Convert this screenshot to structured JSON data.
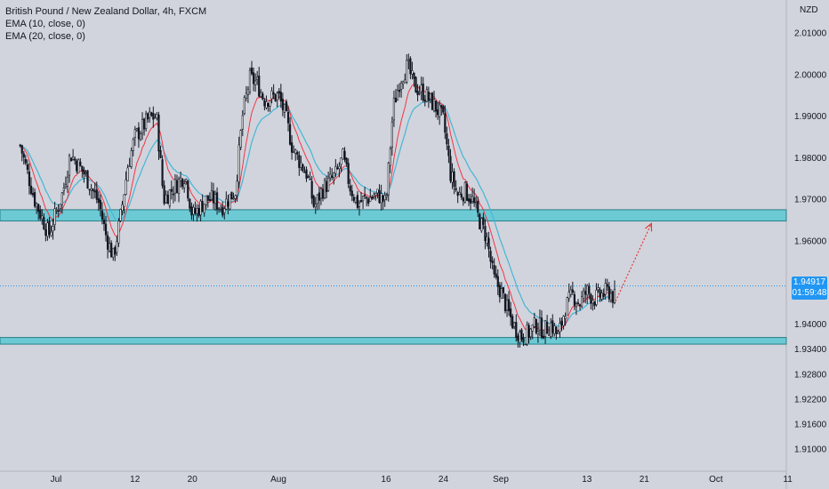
{
  "legend": {
    "symbol": "British Pound / New Zealand Dollar, 4h, FXCM",
    "ema10": "EMA (10, close, 0)",
    "ema20": "EMA (20, close, 0)"
  },
  "currency": "NZD",
  "price_tag": {
    "price": "1.94917",
    "countdown": "01:59:48"
  },
  "colors": {
    "background": "#d1d4dc",
    "zone_fill": "#5bc8d3",
    "zone_border": "#2a7f89",
    "candle": "#131722",
    "ema10": "#f23645",
    "ema20": "#45b6d6",
    "projection": "#e53935",
    "price_line": "#2196f3"
  },
  "chart_data": {
    "type": "candlestick",
    "title": "British Pound / New Zealand Dollar, 4h, FXCM",
    "ylabel": "NZD",
    "ylim": [
      1.905,
      2.013
    ],
    "y_ticks": [
      "2.01000",
      "2.00000",
      "1.99000",
      "1.98000",
      "1.97000",
      "1.96000",
      "1.94000",
      "1.93400",
      "1.92800",
      "1.92200",
      "1.91600",
      "1.91000"
    ],
    "x_ticks": [
      "Jul",
      "12",
      "20",
      "Aug",
      "16",
      "24",
      "Sep",
      "13",
      "21",
      "Oct",
      "11"
    ],
    "support_resistance_zones": [
      {
        "name": "resistance zone",
        "low": 1.9648,
        "high": 1.9675
      },
      {
        "name": "support zone",
        "low": 1.9352,
        "high": 1.9368
      }
    ],
    "last_price": 1.94917,
    "projection": {
      "from": {
        "x": "Sep 17",
        "y": 1.9455
      },
      "to": {
        "x": "Sep 22",
        "y": 1.9642
      }
    },
    "close_path": [
      {
        "x": "Jun 26",
        "y": 1.983
      },
      {
        "x": "Jun 28",
        "y": 1.97
      },
      {
        "x": "Jun 30",
        "y": 1.9615
      },
      {
        "x": "Jul 2",
        "y": 1.972
      },
      {
        "x": "Jul 3",
        "y": 1.981
      },
      {
        "x": "Jul 5",
        "y": 1.976
      },
      {
        "x": "Jul 7",
        "y": 1.969
      },
      {
        "x": "Jul 8",
        "y": 1.961
      },
      {
        "x": "Jul 9",
        "y": 1.956
      },
      {
        "x": "Jul 10",
        "y": 1.966
      },
      {
        "x": "Jul 11",
        "y": 1.978
      },
      {
        "x": "Jul 12",
        "y": 1.985
      },
      {
        "x": "Jul 14",
        "y": 1.9895
      },
      {
        "x": "Jul 15",
        "y": 1.99
      },
      {
        "x": "Jul 16",
        "y": 1.97
      },
      {
        "x": "Jul 17",
        "y": 1.972
      },
      {
        "x": "Jul 19",
        "y": 1.976
      },
      {
        "x": "Jul 20",
        "y": 1.966
      },
      {
        "x": "Jul 22",
        "y": 1.97
      },
      {
        "x": "Jul 23",
        "y": 1.97
      },
      {
        "x": "Jul 24",
        "y": 1.968
      },
      {
        "x": "Jul 26",
        "y": 1.972
      },
      {
        "x": "Jul 27",
        "y": 1.99
      },
      {
        "x": "Jul 28",
        "y": 1.999
      },
      {
        "x": "Jul 29",
        "y": 1.998
      },
      {
        "x": "Jul 30",
        "y": 1.994
      },
      {
        "x": "Aug 1",
        "y": 1.995
      },
      {
        "x": "Aug 2",
        "y": 1.99
      },
      {
        "x": "Aug 3",
        "y": 1.982
      },
      {
        "x": "Aug 5",
        "y": 1.976
      },
      {
        "x": "Aug 6",
        "y": 1.968
      },
      {
        "x": "Aug 7",
        "y": 1.972
      },
      {
        "x": "Aug 9",
        "y": 1.976
      },
      {
        "x": "Aug 10",
        "y": 1.98
      },
      {
        "x": "Aug 11",
        "y": 1.973
      },
      {
        "x": "Aug 12",
        "y": 1.969
      },
      {
        "x": "Aug 13",
        "y": 1.97
      },
      {
        "x": "Aug 15",
        "y": 1.971
      },
      {
        "x": "Aug 16",
        "y": 1.969
      },
      {
        "x": "Aug 17",
        "y": 1.992
      },
      {
        "x": "Aug 18",
        "y": 1.999
      },
      {
        "x": "Aug 19",
        "y": 2.002
      },
      {
        "x": "Aug 20",
        "y": 1.997
      },
      {
        "x": "Aug 21",
        "y": 1.996
      },
      {
        "x": "Aug 22",
        "y": 1.994
      },
      {
        "x": "Aug 23",
        "y": 1.992
      },
      {
        "x": "Aug 24",
        "y": 1.989
      },
      {
        "x": "Aug 25",
        "y": 1.976
      },
      {
        "x": "Aug 26",
        "y": 1.971
      },
      {
        "x": "Aug 27",
        "y": 1.972
      },
      {
        "x": "Aug 28",
        "y": 1.97
      },
      {
        "x": "Aug 29",
        "y": 1.965
      },
      {
        "x": "Aug 30",
        "y": 1.961
      },
      {
        "x": "Aug 31",
        "y": 1.951
      },
      {
        "x": "Sep 1",
        "y": 1.948
      },
      {
        "x": "Sep 2",
        "y": 1.943
      },
      {
        "x": "Sep 3",
        "y": 1.939
      },
      {
        "x": "Sep 4",
        "y": 1.937
      },
      {
        "x": "Sep 5",
        "y": 1.938
      },
      {
        "x": "Sep 6",
        "y": 1.94
      },
      {
        "x": "Sep 7",
        "y": 1.9385
      },
      {
        "x": "Sep 8",
        "y": 1.94
      },
      {
        "x": "Sep 9",
        "y": 1.937
      },
      {
        "x": "Sep 10",
        "y": 1.944
      },
      {
        "x": "Sep 11",
        "y": 1.947
      },
      {
        "x": "Sep 12",
        "y": 1.945
      },
      {
        "x": "Sep 13",
        "y": 1.948
      },
      {
        "x": "Sep 14",
        "y": 1.946
      },
      {
        "x": "Sep 15",
        "y": 1.947
      },
      {
        "x": "Sep 16",
        "y": 1.948
      },
      {
        "x": "Sep 17",
        "y": 1.946
      }
    ]
  }
}
